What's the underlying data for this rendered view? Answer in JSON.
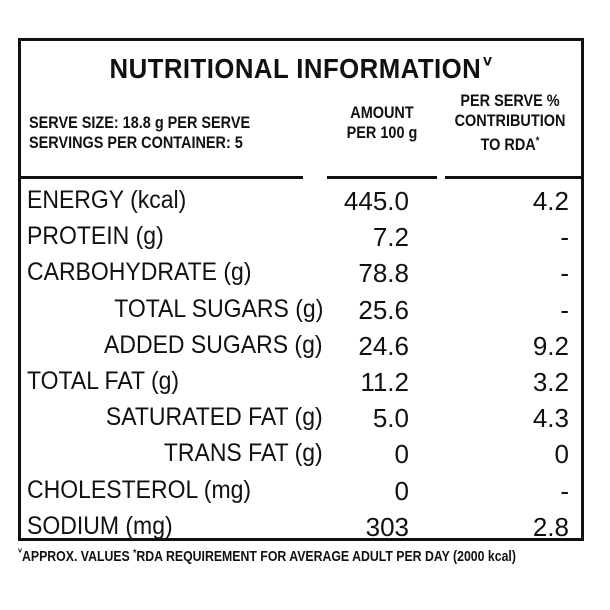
{
  "title": "NUTRITIONAL INFORMATION",
  "title_mark": "ⱽ",
  "header": {
    "serve_size": "SERVE SIZE: 18.8 g PER SERVE",
    "servings": "SERVINGS PER CONTAINER: 5",
    "amount_line1": "AMOUNT",
    "amount_line2": "PER 100 g",
    "rda_line1": "PER SERVE %",
    "rda_line2": "CONTRIBUTION",
    "rda_line3": "TO RDA",
    "rda_mark": "*"
  },
  "rows": [
    {
      "nutrient": "ENERGY (kcal)",
      "amount": "445.0",
      "rda": "4.2",
      "indent": false
    },
    {
      "nutrient": "PROTEIN (g)",
      "amount": "7.2",
      "rda": "-",
      "indent": false
    },
    {
      "nutrient": "CARBOHYDRATE (g)",
      "amount": "78.8",
      "rda": "-",
      "indent": false
    },
    {
      "nutrient": "TOTAL SUGARS (g)",
      "amount": "25.6",
      "rda": "-",
      "indent": true
    },
    {
      "nutrient": "ADDED SUGARS (g)",
      "amount": "24.6",
      "rda": "9.2",
      "indent": true
    },
    {
      "nutrient": "TOTAL FAT (g)",
      "amount": "11.2",
      "rda": "3.2",
      "indent": false
    },
    {
      "nutrient": "SATURATED FAT (g)",
      "amount": "5.0",
      "rda": "4.3",
      "indent": true
    },
    {
      "nutrient": "TRANS FAT (g)",
      "amount": "0",
      "rda": "0",
      "indent": true
    },
    {
      "nutrient": "CHOLESTEROL (mg)",
      "amount": "0",
      "rda": "-",
      "indent": false
    },
    {
      "nutrient": "SODIUM (mg)",
      "amount": "303",
      "rda": "2.8",
      "indent": false
    }
  ],
  "footnote": {
    "approx_mark": "ⱽ",
    "approx": "APPROX. VALUES",
    "rda_mark": "*",
    "rda": "RDA REQUIREMENT FOR AVERAGE ADULT PER DAY (2000 kcal)"
  }
}
